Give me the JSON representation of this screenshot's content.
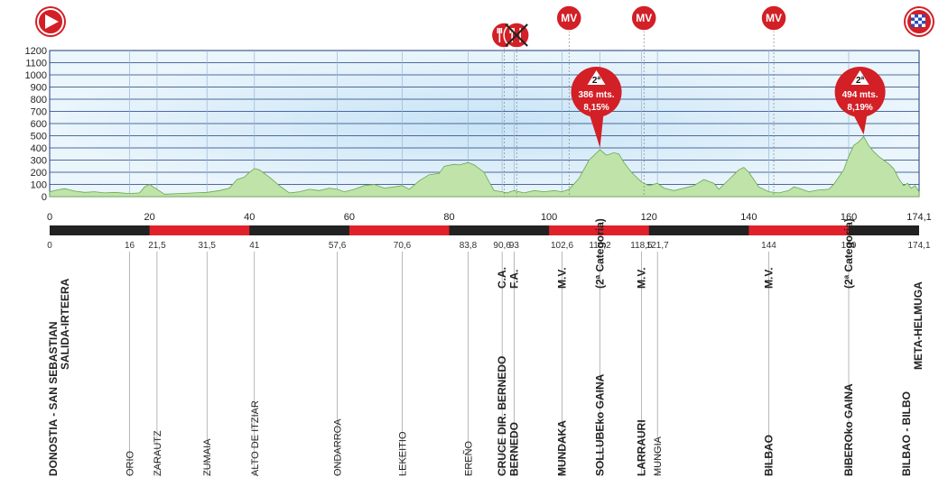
{
  "chart_data": {
    "type": "area",
    "ylim": [
      0,
      1200
    ],
    "xlim": [
      0,
      174.1
    ],
    "yticks": [
      "0",
      "100",
      "200",
      "300",
      "400",
      "500",
      "600",
      "700",
      "800",
      "900",
      "1000",
      "1100",
      "1200"
    ],
    "xticks": [
      "0",
      "20",
      "40",
      "60",
      "80",
      "100",
      "120",
      "140",
      "160",
      "174,1"
    ],
    "profile": [
      [
        0,
        40
      ],
      [
        1.5,
        55
      ],
      [
        3,
        65
      ],
      [
        5,
        45
      ],
      [
        7,
        35
      ],
      [
        9,
        40
      ],
      [
        11,
        30
      ],
      [
        13,
        35
      ],
      [
        16,
        25
      ],
      [
        18,
        30
      ],
      [
        19,
        80
      ],
      [
        20,
        100
      ],
      [
        21.5,
        60
      ],
      [
        23,
        20
      ],
      [
        26,
        25
      ],
      [
        29,
        30
      ],
      [
        31.5,
        35
      ],
      [
        34,
        50
      ],
      [
        36,
        70
      ],
      [
        37.5,
        140
      ],
      [
        39,
        160
      ],
      [
        40,
        200
      ],
      [
        41,
        230
      ],
      [
        42,
        220
      ],
      [
        44,
        160
      ],
      [
        46,
        90
      ],
      [
        48,
        30
      ],
      [
        50,
        40
      ],
      [
        52,
        60
      ],
      [
        54,
        50
      ],
      [
        56,
        70
      ],
      [
        57.6,
        60
      ],
      [
        59,
        40
      ],
      [
        61,
        60
      ],
      [
        63,
        90
      ],
      [
        65,
        100
      ],
      [
        67,
        70
      ],
      [
        69,
        80
      ],
      [
        70.6,
        90
      ],
      [
        72,
        60
      ],
      [
        74,
        130
      ],
      [
        76,
        180
      ],
      [
        78,
        190
      ],
      [
        79,
        250
      ],
      [
        81,
        265
      ],
      [
        82,
        260
      ],
      [
        83.8,
        280
      ],
      [
        85,
        260
      ],
      [
        87,
        200
      ],
      [
        88,
        120
      ],
      [
        89,
        50
      ],
      [
        90.6,
        40
      ],
      [
        91.5,
        30
      ],
      [
        93,
        50
      ],
      [
        95,
        30
      ],
      [
        97,
        50
      ],
      [
        99,
        40
      ],
      [
        101,
        50
      ],
      [
        102.6,
        40
      ],
      [
        104,
        60
      ],
      [
        106,
        150
      ],
      [
        108,
        300
      ],
      [
        110.2,
        386
      ],
      [
        111.5,
        340
      ],
      [
        113,
        360
      ],
      [
        114,
        350
      ],
      [
        115,
        280
      ],
      [
        116.5,
        200
      ],
      [
        118.5,
        120
      ],
      [
        120,
        90
      ],
      [
        121.7,
        110
      ],
      [
        123,
        70
      ],
      [
        125,
        50
      ],
      [
        127,
        70
      ],
      [
        129,
        90
      ],
      [
        131,
        140
      ],
      [
        133,
        110
      ],
      [
        134,
        60
      ],
      [
        136,
        140
      ],
      [
        138,
        220
      ],
      [
        139,
        240
      ],
      [
        140,
        200
      ],
      [
        141,
        140
      ],
      [
        142,
        80
      ],
      [
        144,
        40
      ],
      [
        146,
        30
      ],
      [
        148,
        50
      ],
      [
        149,
        80
      ],
      [
        150,
        70
      ],
      [
        152,
        40
      ],
      [
        154,
        55
      ],
      [
        156,
        60
      ],
      [
        157,
        100
      ],
      [
        159,
        220
      ],
      [
        160,
        330
      ],
      [
        161,
        420
      ],
      [
        162,
        450
      ],
      [
        163,
        494
      ],
      [
        164,
        420
      ],
      [
        165,
        370
      ],
      [
        166,
        330
      ],
      [
        167,
        300
      ],
      [
        168,
        270
      ],
      [
        169,
        230
      ],
      [
        170,
        150
      ],
      [
        171,
        90
      ],
      [
        171.8,
        110
      ],
      [
        172.5,
        70
      ],
      [
        173.3,
        90
      ],
      [
        174.1,
        40
      ]
    ],
    "timeline": [
      {
        "km": 0,
        "label": "0"
      },
      {
        "km": 16,
        "label": "16"
      },
      {
        "km": 21.5,
        "label": "21,5"
      },
      {
        "km": 31.5,
        "label": "31,5"
      },
      {
        "km": 41,
        "label": "41"
      },
      {
        "km": 57.6,
        "label": "57,6"
      },
      {
        "km": 70.6,
        "label": "70,6"
      },
      {
        "km": 83.8,
        "label": "83,8"
      },
      {
        "km": 90.6,
        "label": "90,6"
      },
      {
        "km": 93,
        "label": "93"
      },
      {
        "km": 102.6,
        "label": "102,6"
      },
      {
        "km": 110.2,
        "label": "110,2"
      },
      {
        "km": 118.5,
        "label": "118,5"
      },
      {
        "km": 121.7,
        "label": "121,7"
      },
      {
        "km": 144,
        "label": "144"
      },
      {
        "km": 160,
        "label": "160"
      },
      {
        "km": 174.1,
        "label": "174,1"
      }
    ],
    "places": [
      {
        "km": 0,
        "name": "DONOSTIA - SAN SEBASTIAN",
        "sub": "SALIDA-IRTEERA",
        "bold": true
      },
      {
        "km": 16,
        "name": "ORIO",
        "bold": false
      },
      {
        "km": 21.5,
        "name": "ZARAUTZ",
        "bold": false
      },
      {
        "km": 31.5,
        "name": "ZUMAIA",
        "bold": false
      },
      {
        "km": 41,
        "name": "ALTO DE ITZIAR",
        "bold": false
      },
      {
        "km": 57.6,
        "name": "ONDARROA",
        "bold": false
      },
      {
        "km": 70.6,
        "name": "LEKEITIO",
        "bold": false
      },
      {
        "km": 83.8,
        "name": "EREÑO",
        "bold": false
      },
      {
        "km": 90.6,
        "name": "CRUCE DIR. BERNEDO",
        "top": "C.A.",
        "bold": true
      },
      {
        "km": 93,
        "name": "BERNEDO",
        "top": "F.A.",
        "bold": true
      },
      {
        "km": 102.6,
        "name": "MUNDAKA",
        "top": "M.V.",
        "bold": true
      },
      {
        "km": 110.2,
        "name": "SOLLUBEko GAINA",
        "top": "(2ª Categoria)",
        "bold": true
      },
      {
        "km": 118.5,
        "name": "LARRAURI",
        "top": "M.V.",
        "bold": true
      },
      {
        "km": 121.7,
        "name": "MUNGIA",
        "bold": false
      },
      {
        "km": 144,
        "name": "BILBAO",
        "top": "M.V.",
        "bold": true
      },
      {
        "km": 160,
        "name": "BIBEROko GAINA",
        "top": "(2ª Categoria)",
        "bold": true
      },
      {
        "km": 174.1,
        "name": "BILBAO - BILBO",
        "sub": "META-HELMUGA",
        "bold": true
      }
    ],
    "climbs": [
      {
        "km": 110.2,
        "alt": 386,
        "cat": "2ª",
        "label1": "386 mts.",
        "label2": "8,15%"
      },
      {
        "km": 163,
        "alt": 494,
        "cat": "2ª",
        "label1": "494 mts.",
        "label2": "8,19%"
      }
    ],
    "markers": [
      {
        "km": 91,
        "type": "feed",
        "label": ""
      },
      {
        "km": 93.5,
        "type": "feed-crossed",
        "label": ""
      },
      {
        "km": 104,
        "type": "mv",
        "label": "MV"
      },
      {
        "km": 119,
        "type": "mv",
        "label": "MV"
      },
      {
        "km": 145,
        "type": "mv",
        "label": "MV"
      }
    ],
    "colors": {
      "profile": "#bfe3a8",
      "profile_stroke": "#6aa84f",
      "sky": "#dbeefa",
      "band_dark": "#222222",
      "band_red": "#e0212b",
      "marker": "#d31f26"
    }
  }
}
